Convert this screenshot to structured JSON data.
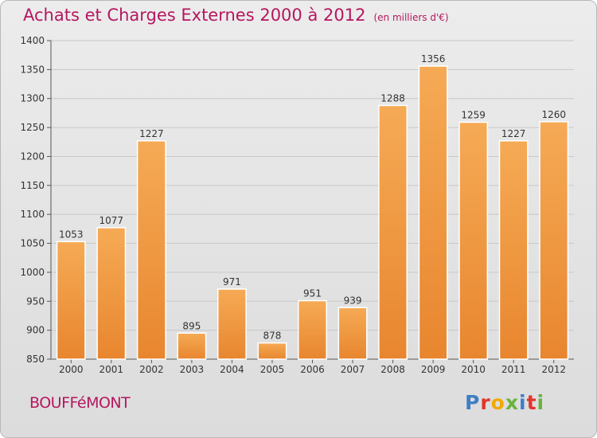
{
  "header": {
    "title": "Achats et Charges Externes 2000 à 2012",
    "unit": "(en milliers d'€)"
  },
  "footer": {
    "place": "BOUFFéMONT",
    "logo_letters": [
      "P",
      "r",
      "o",
      "x",
      "i",
      "t",
      "i"
    ],
    "logo_colors": [
      "#3f7ec6",
      "#e2352c",
      "#f2a900",
      "#6ab23e",
      "#3f7ec6",
      "#e2352c",
      "#6ab23e"
    ]
  },
  "chart_data": {
    "type": "bar",
    "title": "Achats et Charges Externes 2000 à 2012",
    "subtitle": "(en milliers d'€)",
    "xlabel": "",
    "ylabel": "",
    "categories": [
      "2000",
      "2001",
      "2002",
      "2003",
      "2004",
      "2005",
      "2006",
      "2007",
      "2008",
      "2009",
      "2010",
      "2011",
      "2012"
    ],
    "values": [
      1053,
      1077,
      1227,
      895,
      971,
      878,
      951,
      939,
      1288,
      1356,
      1259,
      1227,
      1260
    ],
    "ylim": [
      850,
      1400
    ],
    "yticks": [
      850,
      900,
      950,
      1000,
      1050,
      1100,
      1150,
      1200,
      1250,
      1300,
      1350,
      1400
    ],
    "grid": true,
    "bar_color": "#e8862f",
    "bar_color_light": "#f6aa55"
  }
}
